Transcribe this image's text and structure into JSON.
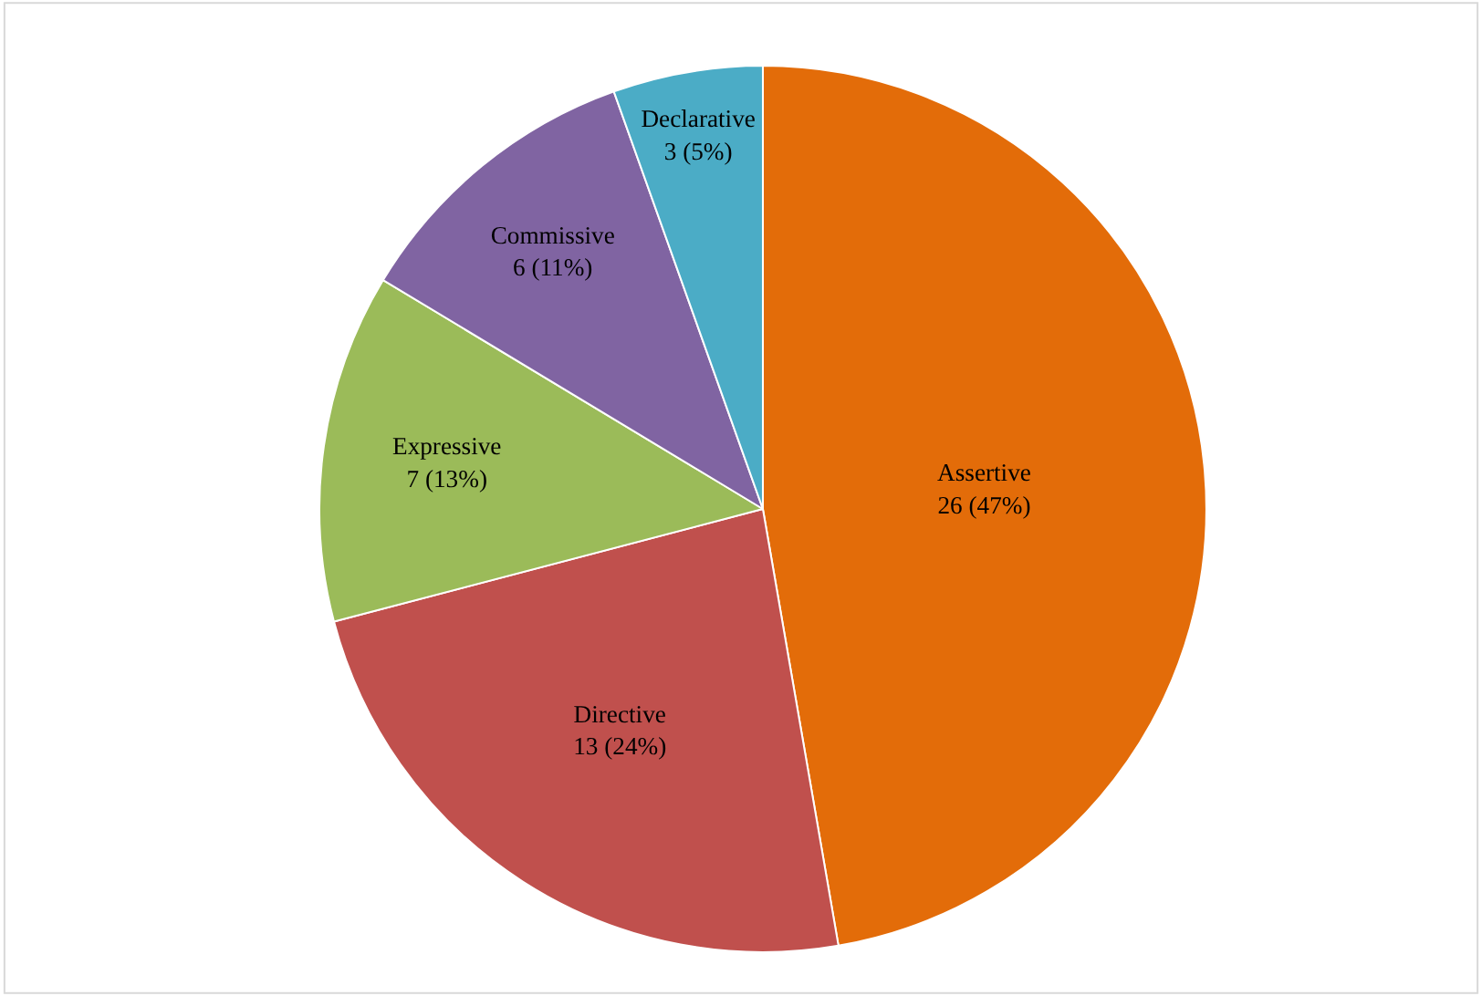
{
  "chart_data": {
    "type": "pie",
    "categories": [
      "Assertive",
      "Directive",
      "Expressive",
      "Commissive",
      "Declarative"
    ],
    "values": [
      26,
      13,
      7,
      6,
      3
    ],
    "value_labels": [
      "26 (47%)",
      "13 (24%)",
      "7 (13%)",
      "6 (11%)",
      "3 (5%)"
    ],
    "colors": [
      "#e36c09",
      "#c0504d",
      "#9bbb59",
      "#8064a2",
      "#4bacc6"
    ],
    "legend": false
  }
}
